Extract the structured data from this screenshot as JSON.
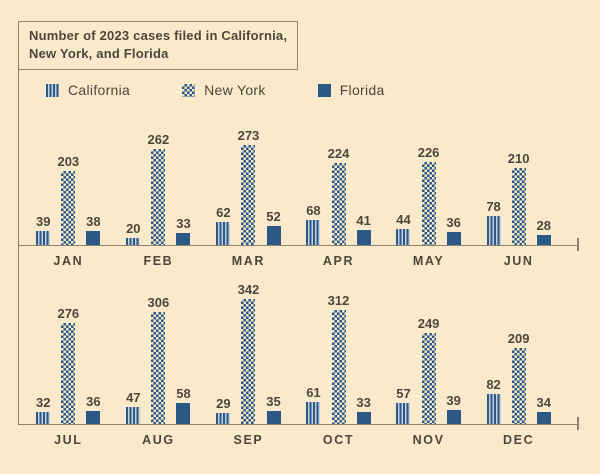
{
  "title_box": {
    "line1": "Number of 2023 cases filed in California,",
    "line2": "New York, and Florida"
  },
  "colors": {
    "background": "#faeacb",
    "bar_navy": "#2b5884",
    "stripe_light": "#c3cfdd",
    "checker_light": "#f3e7c9",
    "text": "#4c473b",
    "line": "#8b8471"
  },
  "chart_data": {
    "type": "bar",
    "title": "Number of 2023 cases filed in California, New York, and Florida",
    "categories": [
      "JAN",
      "FEB",
      "MAR",
      "APR",
      "MAY",
      "JUN",
      "JUL",
      "AUG",
      "SEP",
      "OCT",
      "NOV",
      "DEC"
    ],
    "series": [
      {
        "name": "California",
        "pattern": "stripes",
        "values": [
          39,
          20,
          62,
          68,
          44,
          78,
          32,
          47,
          29,
          61,
          57,
          82
        ]
      },
      {
        "name": "New York",
        "pattern": "checker",
        "values": [
          203,
          262,
          273,
          224,
          226,
          210,
          276,
          306,
          342,
          312,
          249,
          209
        ]
      },
      {
        "name": "Florida",
        "pattern": "solid",
        "values": [
          38,
          33,
          52,
          41,
          36,
          28,
          36,
          58,
          35,
          33,
          39,
          34
        ]
      }
    ],
    "value_labels": true,
    "legend_position": "top",
    "layout": {
      "rows": 2,
      "months_per_row": 6,
      "grid": false
    }
  }
}
